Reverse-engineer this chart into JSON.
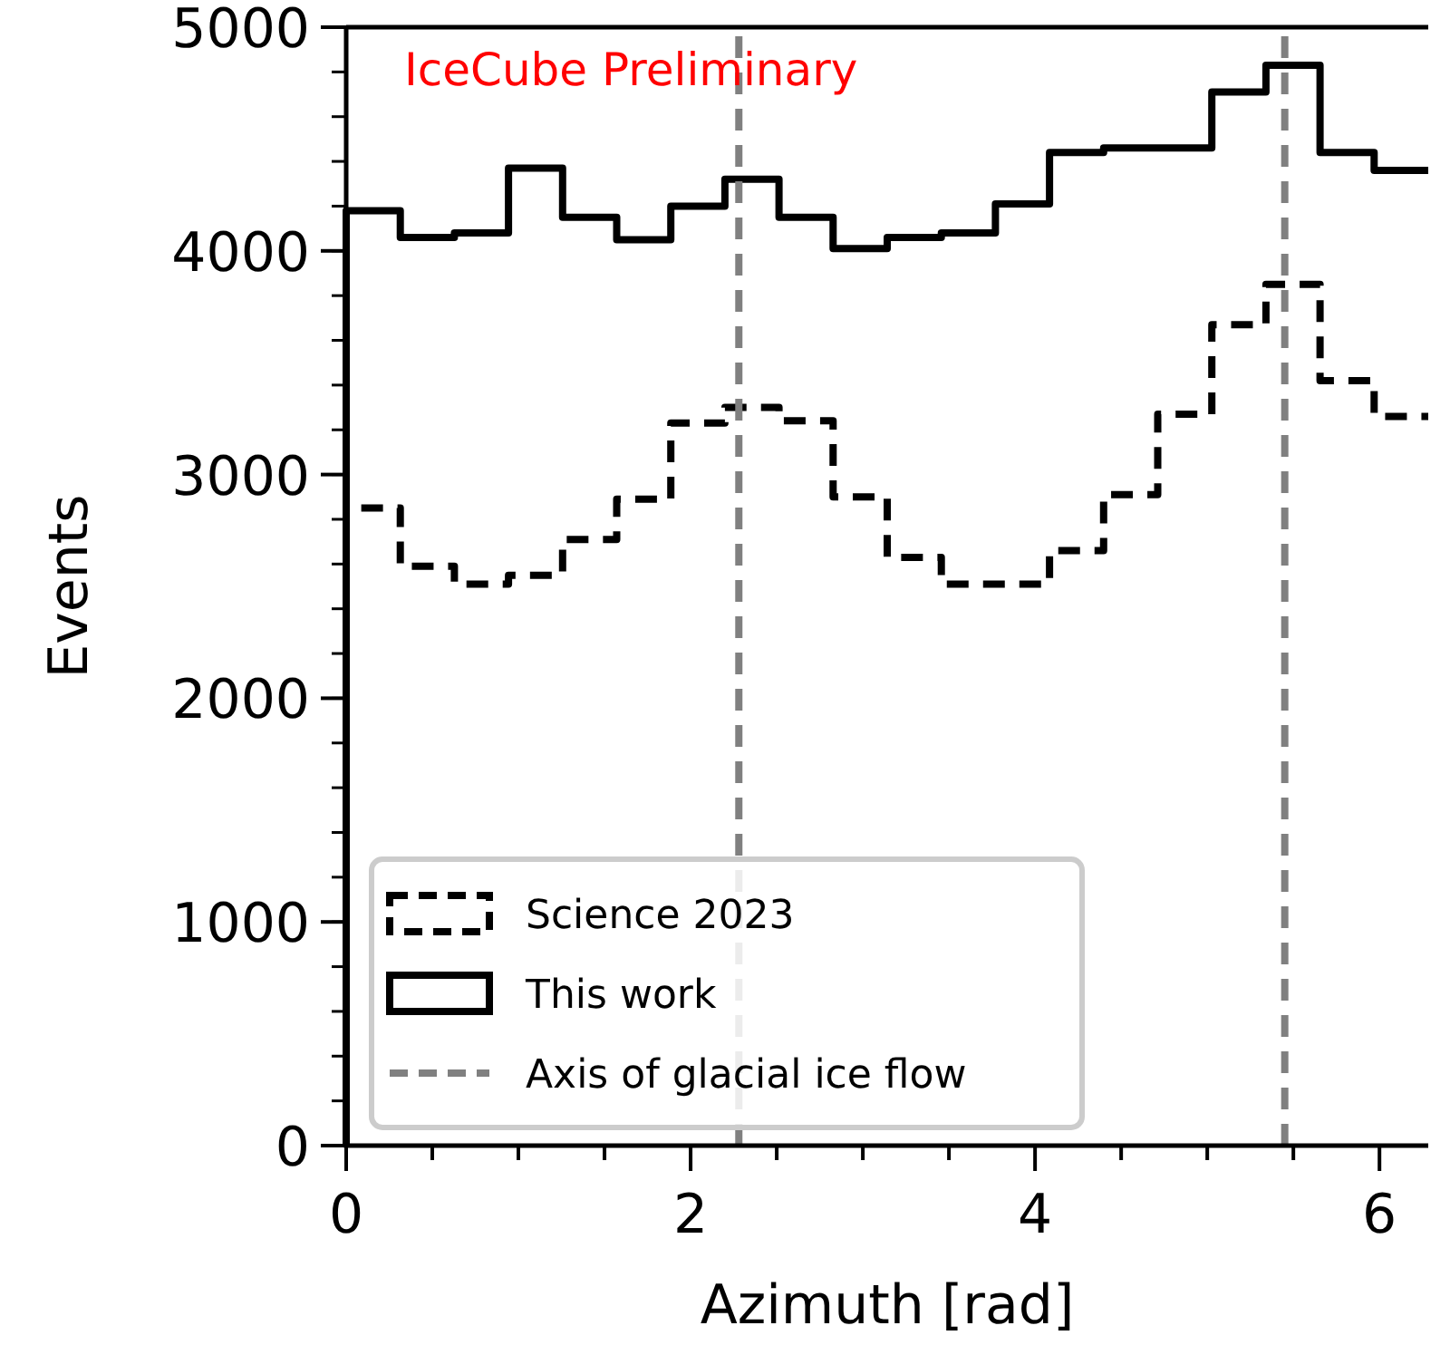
{
  "chart_data": {
    "type": "histogram",
    "xlabel": "Azimuth [rad]",
    "ylabel": "Events",
    "bins": [
      0,
      0.3142,
      0.6283,
      0.9425,
      1.2566,
      1.5708,
      1.885,
      2.1991,
      2.5133,
      2.8274,
      3.1416,
      3.4558,
      3.7699,
      4.0841,
      4.3982,
      4.7124,
      5.0265,
      5.3407,
      5.6549,
      5.969,
      6.2832
    ],
    "series": [
      {
        "name": "Science 2023",
        "color": "#000000",
        "line_style": "dashed",
        "values": [
          2850,
          2590,
          2510,
          2550,
          2710,
          2890,
          3230,
          3300,
          3240,
          2900,
          2630,
          2510,
          2510,
          2660,
          2910,
          3270,
          3670,
          3850,
          3420,
          3260
        ]
      },
      {
        "name": "This work",
        "color": "#000000",
        "line_style": "solid",
        "values": [
          4180,
          4060,
          4080,
          4370,
          4150,
          4050,
          4200,
          4320,
          4150,
          4010,
          4060,
          4080,
          4210,
          4440,
          4460,
          4460,
          4710,
          4830,
          4440,
          4360
        ]
      }
    ],
    "ref_lines": [
      {
        "axis": "x",
        "value": 2.28,
        "label": "Axis of glacial ice flow",
        "color": "#808080",
        "line_style": "dashed"
      },
      {
        "axis": "x",
        "value": 5.45,
        "color": "#808080",
        "line_style": "dashed"
      }
    ],
    "annotations": [
      "IceCube Preliminary"
    ],
    "xlim": [
      0,
      6.2832
    ],
    "xticks": [
      0,
      {
        "value": 0.5,
        "label": null
      },
      {
        "value": 1,
        "label": null
      },
      {
        "value": 1.5,
        "label": null
      },
      2,
      {
        "value": 2.5,
        "label": null
      },
      {
        "value": 3,
        "label": null
      },
      {
        "value": 3.5,
        "label": null
      },
      4,
      {
        "value": 4.5,
        "label": null
      },
      {
        "value": 5,
        "label": null
      },
      {
        "value": 5.5,
        "label": null
      },
      6
    ],
    "ylim": [
      0,
      5000
    ],
    "yticks": [
      0,
      1000,
      2000,
      3000,
      4000,
      5000
    ],
    "legend": "bottom left"
  }
}
